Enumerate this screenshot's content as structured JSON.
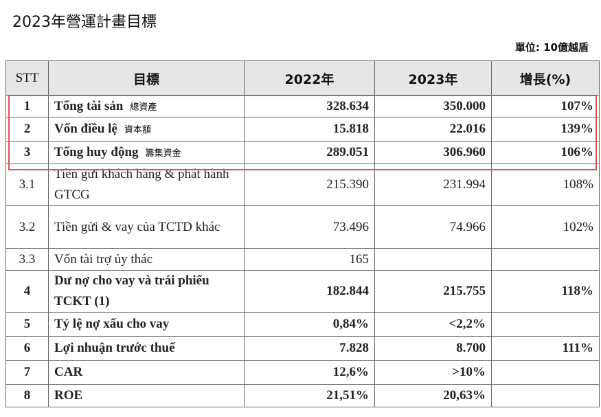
{
  "header": {
    "title": "2023年營運計畫目標",
    "unit": "單位: 10億越盾"
  },
  "table": {
    "columns": [
      "STT",
      "目標",
      "2022年",
      "2023年",
      "增長(%)"
    ],
    "rows": [
      {
        "stt": "1",
        "name": "Tổng tài sản",
        "note": "總資產",
        "y2022": "328.634",
        "y2023": "350.000",
        "growth": "107%"
      },
      {
        "stt": "2",
        "name": "Vốn điều lệ",
        "note": "資本額",
        "y2022": "15.818",
        "y2023": "22.016",
        "growth": "139%"
      },
      {
        "stt": "3",
        "name": "Tổng huy động",
        "note": "籌集資金",
        "y2022": "289.051",
        "y2023": "306.960",
        "growth": "106%"
      },
      {
        "stt": "3.1",
        "name": "Tiền gửi khách hàng & phát hành GTCG",
        "y2022": "215.390",
        "y2023": "231.994",
        "growth": "108%"
      },
      {
        "stt": "3.2",
        "name": "Tiền gửi & vay của TCTD khác",
        "y2022": "73.496",
        "y2023": "74.966",
        "growth": "102%"
      },
      {
        "stt": "3.3",
        "name": "Vốn tài trợ ủy thác",
        "y2022": "165"
      },
      {
        "stt": "4",
        "name": "Dư nợ cho vay và trái phiếu TCKT (1)",
        "y2022": "182.844",
        "y2023": "215.755",
        "growth": "118%"
      },
      {
        "stt": "5",
        "name": "Tỷ lệ nợ xấu cho vay",
        "y2022": "0,84%",
        "y2023": "<2,2%"
      },
      {
        "stt": "6",
        "name": "Lợi nhuận trước thuế",
        "y2022": "7.828",
        "y2023": "8.700",
        "growth": "111%"
      },
      {
        "stt": "7",
        "name": "CAR",
        "y2022": "12,6%",
        "y2023": ">10%"
      },
      {
        "stt": "8",
        "name": "ROE",
        "y2022": "21,51%",
        "y2023": "20,63%"
      }
    ]
  }
}
